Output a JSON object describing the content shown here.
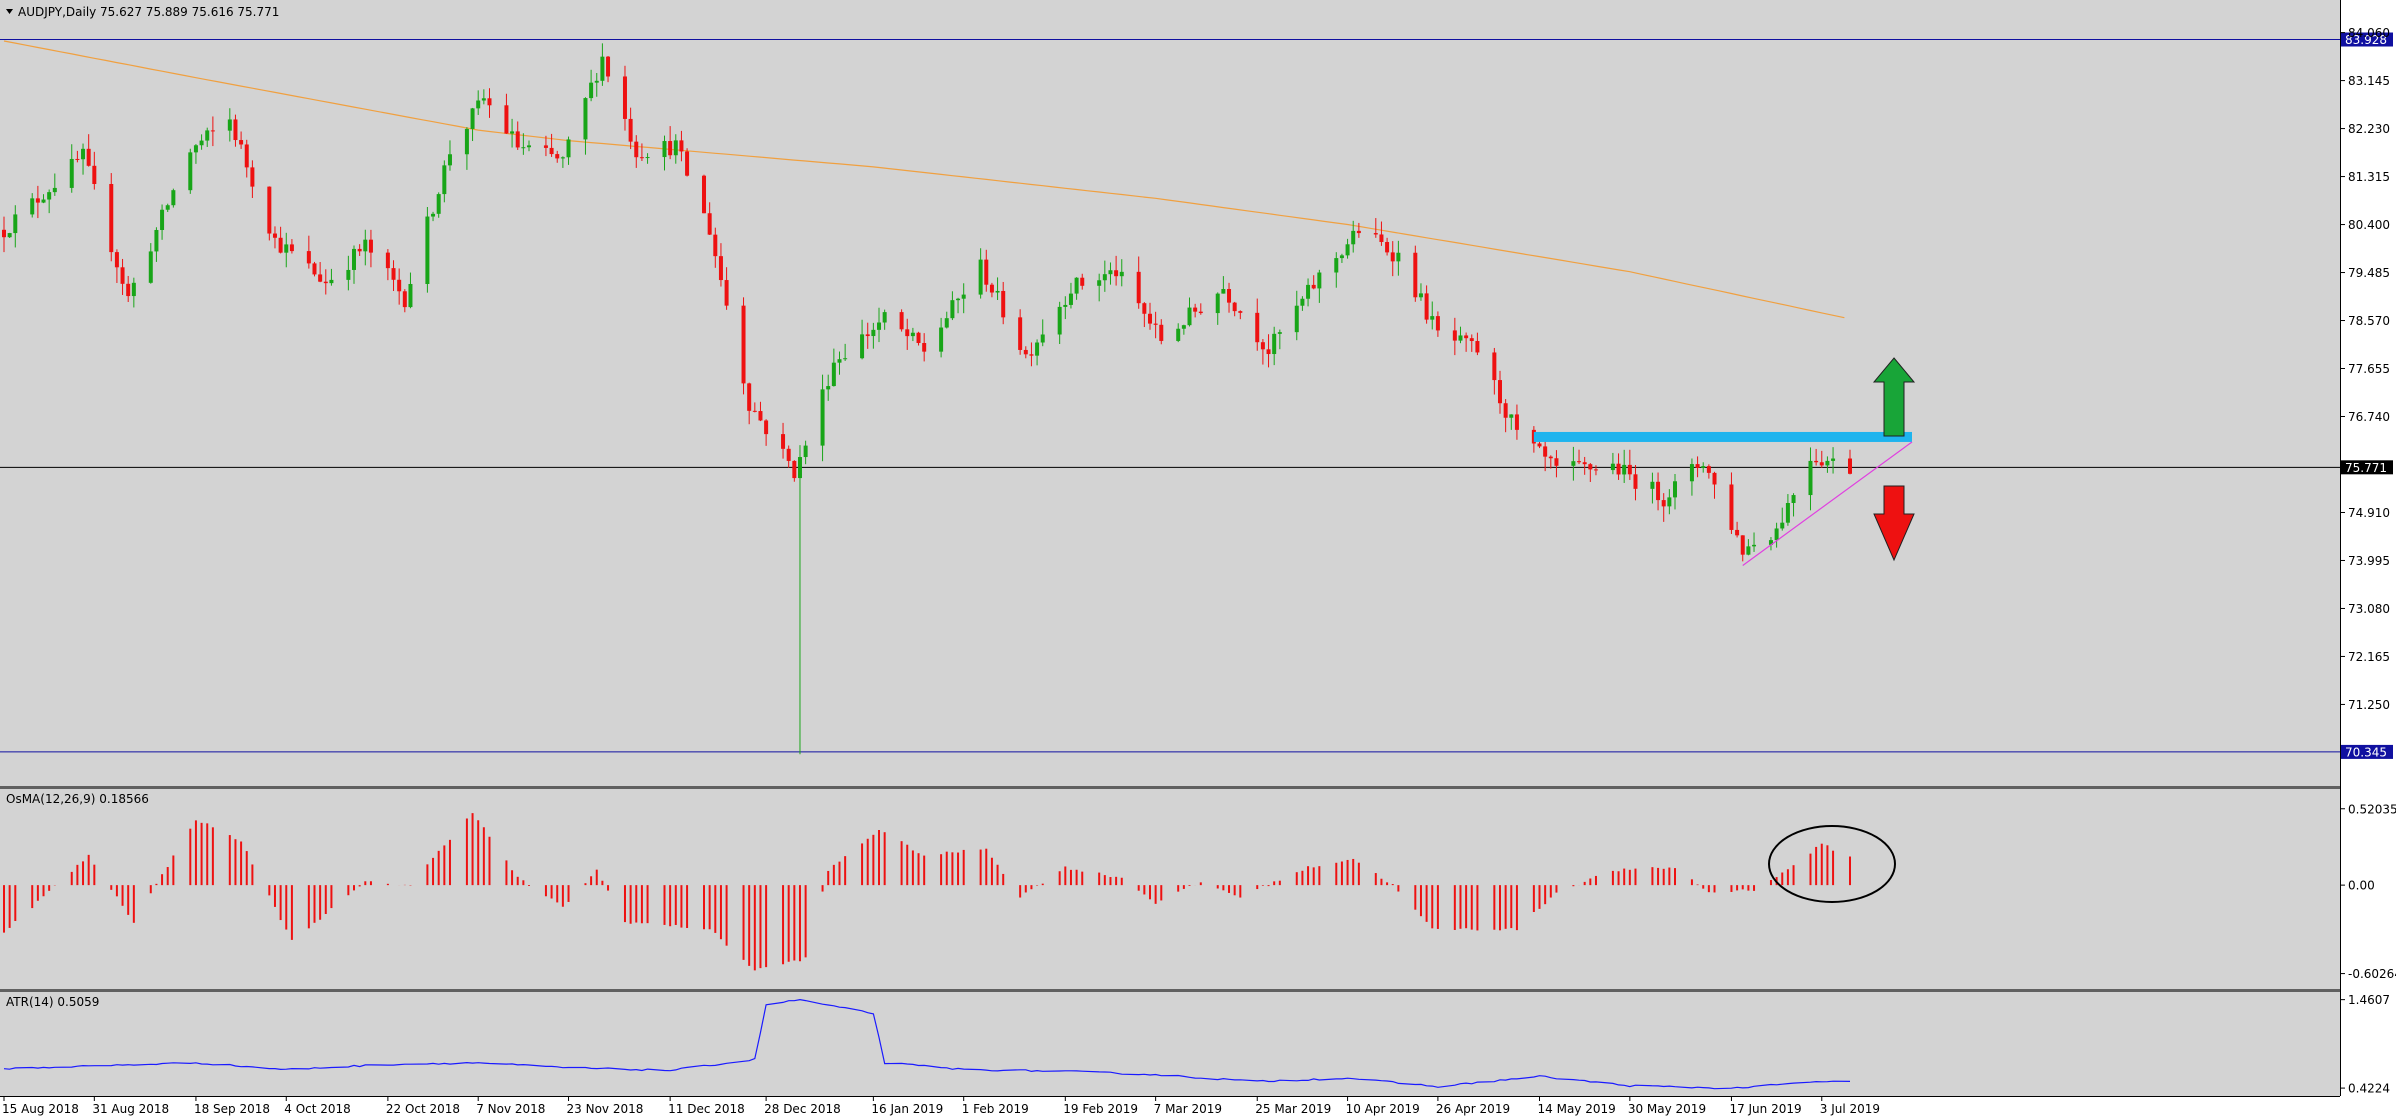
{
  "header": {
    "symbol": "AUDJPY,Daily",
    "ohlc": "75.627 75.889 75.616 75.771"
  },
  "chart_data": [
    {
      "type": "candlestick",
      "title": "AUDJPY,Daily",
      "x": [
        "15 Aug 2018",
        "31 Aug 2018",
        "18 Sep 2018",
        "4 Oct 2018",
        "22 Oct 2018",
        "7 Nov 2018",
        "23 Nov 2018",
        "11 Dec 2018",
        "28 Dec 2018",
        "16 Jan 2019",
        "1 Feb 2019",
        "19 Feb 2019",
        "7 Mar 2019",
        "25 Mar 2019",
        "10 Apr 2019",
        "26 Apr 2019",
        "14 May 2019",
        "30 May 2019",
        "17 Jun 2019",
        "3 Jul 2019"
      ],
      "price_axis_labels": [
        "84.060",
        "83.145",
        "82.230",
        "81.315",
        "80.400",
        "79.485",
        "78.570",
        "77.655",
        "76.740",
        "74.910",
        "73.995",
        "73.080",
        "72.165",
        "71.250"
      ],
      "ylim": [
        70.0,
        84.3
      ],
      "current_price": "75.771",
      "horizontal_levels": [
        "83.928",
        "70.345"
      ],
      "waypoints": [
        {
          "x": "15 Aug 2018",
          "close": 80.3
        },
        {
          "x": "29 Aug 2018",
          "close": 81.7
        },
        {
          "x": "6 Sep 2018",
          "close": 79.0
        },
        {
          "x": "17 Sep 2018",
          "close": 81.8
        },
        {
          "x": "24 Sep 2018",
          "close": 82.4
        },
        {
          "x": "2 Oct 2018",
          "close": 80.1
        },
        {
          "x": "11 Oct 2018",
          "close": 79.3
        },
        {
          "x": "18 Oct 2018",
          "close": 80.0
        },
        {
          "x": "25 Oct 2018",
          "close": 79.0
        },
        {
          "x": "2 Nov 2018",
          "close": 81.8
        },
        {
          "x": "8 Nov 2018",
          "close": 82.8
        },
        {
          "x": "14 Nov 2018",
          "close": 81.9
        },
        {
          "x": "22 Nov 2018",
          "close": 81.6
        },
        {
          "x": "29 Nov 2018",
          "close": 83.6
        },
        {
          "x": "5 Dec 2018",
          "close": 81.8
        },
        {
          "x": "12 Dec 2018",
          "close": 81.9
        },
        {
          "x": "18 Dec 2018",
          "close": 80.3
        },
        {
          "x": "25 Dec 2018",
          "close": 77.0
        },
        {
          "x": "2 Jan 2019",
          "close": 75.7
        },
        {
          "x": "3 Jan 2019",
          "close": 75.9
        },
        {
          "x": "9 Jan 2019",
          "close": 77.8
        },
        {
          "x": "18 Jan 2019",
          "close": 78.6
        },
        {
          "x": "25 Jan 2019",
          "close": 78.0
        },
        {
          "x": "4 Feb 2019",
          "close": 79.6
        },
        {
          "x": "12 Feb 2019",
          "close": 77.9
        },
        {
          "x": "20 Feb 2019",
          "close": 79.2
        },
        {
          "x": "28 Feb 2019",
          "close": 79.5
        },
        {
          "x": "8 Mar 2019",
          "close": 78.2
        },
        {
          "x": "19 Mar 2019",
          "close": 79.2
        },
        {
          "x": "27 Mar 2019",
          "close": 78.0
        },
        {
          "x": "5 Apr 2019",
          "close": 79.4
        },
        {
          "x": "12 Apr 2019",
          "close": 80.3
        },
        {
          "x": "19 Apr 2019",
          "close": 79.8
        },
        {
          "x": "26 Apr 2019",
          "close": 78.3
        },
        {
          "x": "3 May 2019",
          "close": 78.0
        },
        {
          "x": "10 May 2019",
          "close": 76.4
        },
        {
          "x": "17 May 2019",
          "close": 75.7
        },
        {
          "x": "27 May 2019",
          "close": 75.8
        },
        {
          "x": "5 Jun 2019",
          "close": 75.2
        },
        {
          "x": "12 Jun 2019",
          "close": 75.9
        },
        {
          "x": "19 Jun 2019",
          "close": 74.2
        },
        {
          "x": "25 Jun 2019",
          "close": 74.6
        },
        {
          "x": "1 Jul 2019",
          "close": 76.0
        },
        {
          "x": "8 Jul 2019",
          "close": 75.77
        }
      ],
      "flash_crash_low": 70.3,
      "moving_average_points": [
        {
          "x": "15 Aug 2018",
          "value": 83.9
        },
        {
          "x": "18 Sep 2018",
          "value": 83.2
        },
        {
          "x": "7 Nov 2018",
          "value": 82.2
        },
        {
          "x": "23 Nov 2018",
          "value": 82.0
        },
        {
          "x": "16 Jan 2019",
          "value": 81.5
        },
        {
          "x": "7 Mar 2019",
          "value": 80.9
        },
        {
          "x": "10 Apr 2019",
          "value": 80.4
        },
        {
          "x": "30 May 2019",
          "value": 79.5
        },
        {
          "x": "8 Jul 2019",
          "value": 78.6
        }
      ],
      "resistance_level": 76.35,
      "colors": {
        "bull": "#18a518",
        "bear": "#ee1111",
        "ma": "#f0a040",
        "resistance": "#1eb4ee",
        "trendline": "#e040e0",
        "up_arrow": "#18a538",
        "down_arrow": "#ee1111"
      }
    },
    {
      "type": "histogram",
      "title": "OsMA(12,26,9) 0.18566",
      "axis_labels": [
        "0.52035",
        "0.00",
        "-0.60264"
      ],
      "ylim": [
        -0.66,
        0.58
      ],
      "color": "#ee1111",
      "waypoints": [
        {
          "x": "15 Aug 2018",
          "value": -0.32
        },
        {
          "x": "30 Aug 2018",
          "value": 0.2
        },
        {
          "x": "7 Sep 2018",
          "value": -0.25
        },
        {
          "x": "18 Sep 2018",
          "value": 0.45
        },
        {
          "x": "26 Sep 2018",
          "value": 0.3
        },
        {
          "x": "5 Oct 2018",
          "value": -0.38
        },
        {
          "x": "18 Oct 2018",
          "value": 0.02
        },
        {
          "x": "26 Oct 2018",
          "value": 0.0
        },
        {
          "x": "6 Nov 2018",
          "value": 0.5
        },
        {
          "x": "14 Nov 2018",
          "value": 0.05
        },
        {
          "x": "22 Nov 2018",
          "value": -0.15
        },
        {
          "x": "28 Nov 2018",
          "value": 0.1
        },
        {
          "x": "3 Dec 2018",
          "value": -0.25
        },
        {
          "x": "18 Dec 2018",
          "value": -0.3
        },
        {
          "x": "26 Dec 2018",
          "value": -0.58
        },
        {
          "x": "4 Jan 2019",
          "value": -0.5
        },
        {
          "x": "8 Jan 2019",
          "value": 0.1
        },
        {
          "x": "17 Jan 2019",
          "value": 0.38
        },
        {
          "x": "25 Jan 2019",
          "value": 0.2
        },
        {
          "x": "5 Feb 2019",
          "value": 0.25
        },
        {
          "x": "11 Feb 2019",
          "value": -0.08
        },
        {
          "x": "19 Feb 2019",
          "value": 0.12
        },
        {
          "x": "1 Mar 2019",
          "value": 0.05
        },
        {
          "x": "7 Mar 2019",
          "value": -0.12
        },
        {
          "x": "15 Mar 2019",
          "value": 0.02
        },
        {
          "x": "22 Mar 2019",
          "value": -0.08
        },
        {
          "x": "3 Apr 2019",
          "value": 0.12
        },
        {
          "x": "11 Apr 2019",
          "value": 0.18
        },
        {
          "x": "18 Apr 2019",
          "value": 0.0
        },
        {
          "x": "25 Apr 2019",
          "value": -0.3
        },
        {
          "x": "10 May 2019",
          "value": -0.3
        },
        {
          "x": "17 May 2019",
          "value": -0.05
        },
        {
          "x": "27 May 2019",
          "value": 0.1
        },
        {
          "x": "7 Jun 2019",
          "value": 0.12
        },
        {
          "x": "13 Jun 2019",
          "value": -0.05
        },
        {
          "x": "21 Jun 2019",
          "value": -0.03
        },
        {
          "x": "26 Jun 2019",
          "value": 0.08
        },
        {
          "x": "3 Jul 2019",
          "value": 0.28
        },
        {
          "x": "8 Jul 2019",
          "value": 0.19
        }
      ]
    },
    {
      "type": "line",
      "title": "ATR(14) 0.5059",
      "axis_labels": [
        "1.4607",
        "0.4224"
      ],
      "ylim": [
        0.4,
        1.48
      ],
      "color": "#1a1aff",
      "waypoints": [
        {
          "x": "15 Aug 2018",
          "value": 0.65
        },
        {
          "x": "18 Sep 2018",
          "value": 0.72
        },
        {
          "x": "4 Oct 2018",
          "value": 0.64
        },
        {
          "x": "22 Oct 2018",
          "value": 0.7
        },
        {
          "x": "7 Nov 2018",
          "value": 0.72
        },
        {
          "x": "23 Nov 2018",
          "value": 0.66
        },
        {
          "x": "11 Dec 2018",
          "value": 0.63
        },
        {
          "x": "24 Dec 2018",
          "value": 0.74
        },
        {
          "x": "26 Dec 2018",
          "value": 0.76
        },
        {
          "x": "28 Dec 2018",
          "value": 1.4
        },
        {
          "x": "3 Jan 2019",
          "value": 1.46
        },
        {
          "x": "9 Jan 2019",
          "value": 1.38
        },
        {
          "x": "16 Jan 2019",
          "value": 1.3
        },
        {
          "x": "18 Jan 2019",
          "value": 0.72
        },
        {
          "x": "1 Feb 2019",
          "value": 0.64
        },
        {
          "x": "19 Feb 2019",
          "value": 0.62
        },
        {
          "x": "7 Mar 2019",
          "value": 0.58
        },
        {
          "x": "25 Mar 2019",
          "value": 0.5
        },
        {
          "x": "10 Apr 2019",
          "value": 0.54
        },
        {
          "x": "26 Apr 2019",
          "value": 0.44
        },
        {
          "x": "14 May 2019",
          "value": 0.56
        },
        {
          "x": "30 May 2019",
          "value": 0.45
        },
        {
          "x": "17 Jun 2019",
          "value": 0.42
        },
        {
          "x": "3 Jul 2019",
          "value": 0.5
        },
        {
          "x": "8 Jul 2019",
          "value": 0.5
        }
      ]
    }
  ]
}
